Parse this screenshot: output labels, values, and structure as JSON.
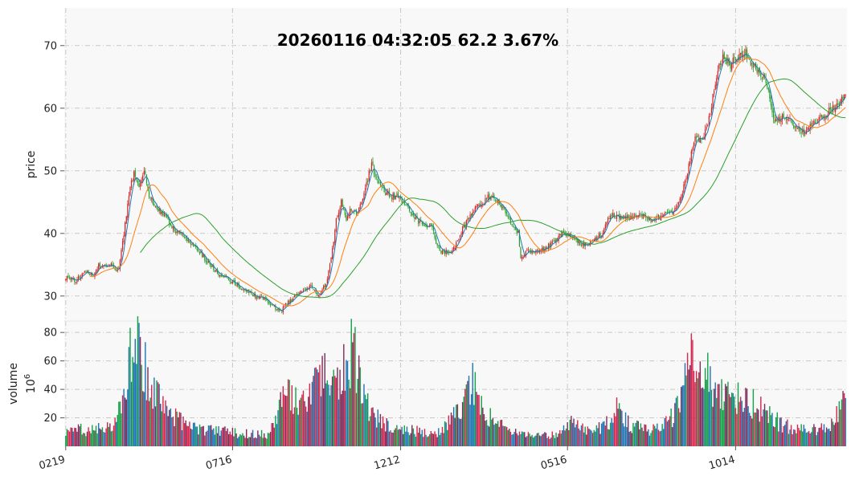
{
  "chart_data": {
    "type": "candlestick",
    "title": "20260116 04:32:05   62.2 3.67%",
    "colors": {
      "up": "#d62728",
      "down": "#2ca02c",
      "ma_short": "#1f77b4",
      "ma_mid": "#ff7f0e",
      "ma_long": "#2ca02c",
      "vol": [
        "#1f77b4",
        "#7f2d5a",
        "#d6274f",
        "#16a04a"
      ],
      "panel_bg": "#f8f8f8",
      "grid": "#c8c8c8"
    },
    "price_panel": {
      "ylabel": "price",
      "ylim": [
        26,
        76
      ],
      "yticks": [
        30,
        40,
        50,
        60,
        70
      ],
      "grid": true,
      "keypoints": [
        [
          0,
          33
        ],
        [
          8,
          32.5
        ],
        [
          16,
          34
        ],
        [
          22,
          33
        ],
        [
          26,
          35
        ],
        [
          32,
          34.5
        ],
        [
          36,
          35
        ],
        [
          42,
          34
        ],
        [
          46,
          40
        ],
        [
          50,
          46
        ],
        [
          54,
          50
        ],
        [
          58,
          47
        ],
        [
          62,
          50
        ],
        [
          66,
          46
        ],
        [
          72,
          44
        ],
        [
          78,
          43
        ],
        [
          84,
          41
        ],
        [
          90,
          40
        ],
        [
          96,
          39
        ],
        [
          102,
          38
        ],
        [
          110,
          36
        ],
        [
          118,
          34
        ],
        [
          126,
          33
        ],
        [
          134,
          32
        ],
        [
          142,
          31
        ],
        [
          150,
          30
        ],
        [
          158,
          29.5
        ],
        [
          166,
          28
        ],
        [
          170,
          27.5
        ],
        [
          176,
          29
        ],
        [
          182,
          30
        ],
        [
          188,
          31
        ],
        [
          194,
          31.5
        ],
        [
          200,
          30
        ],
        [
          206,
          32
        ],
        [
          210,
          36
        ],
        [
          214,
          42
        ],
        [
          218,
          45
        ],
        [
          222,
          42
        ],
        [
          226,
          44
        ],
        [
          230,
          43
        ],
        [
          234,
          45
        ],
        [
          238,
          48
        ],
        [
          242,
          51
        ],
        [
          246,
          49
        ],
        [
          250,
          47
        ],
        [
          256,
          46
        ],
        [
          262,
          46
        ],
        [
          268,
          45
        ],
        [
          272,
          44
        ],
        [
          278,
          42
        ],
        [
          284,
          41.5
        ],
        [
          290,
          41
        ],
        [
          294,
          38
        ],
        [
          298,
          37
        ],
        [
          306,
          37
        ],
        [
          312,
          40
        ],
        [
          318,
          42
        ],
        [
          324,
          44
        ],
        [
          330,
          45
        ],
        [
          336,
          46
        ],
        [
          342,
          45
        ],
        [
          346,
          44
        ],
        [
          352,
          42
        ],
        [
          358,
          40
        ],
        [
          360,
          36
        ],
        [
          364,
          37
        ],
        [
          370,
          37
        ],
        [
          376,
          37.5
        ],
        [
          382,
          38
        ],
        [
          388,
          39
        ],
        [
          394,
          40
        ],
        [
          400,
          39.5
        ],
        [
          406,
          38.5
        ],
        [
          412,
          38
        ],
        [
          418,
          39
        ],
        [
          424,
          40
        ],
        [
          428,
          42
        ],
        [
          432,
          43
        ],
        [
          438,
          42.5
        ],
        [
          446,
          42.5
        ],
        [
          454,
          43
        ],
        [
          460,
          42
        ],
        [
          466,
          42
        ],
        [
          472,
          43
        ],
        [
          478,
          43
        ],
        [
          484,
          44
        ],
        [
          490,
          48
        ],
        [
          494,
          52
        ],
        [
          498,
          55
        ],
        [
          504,
          55
        ],
        [
          508,
          57
        ],
        [
          512,
          62
        ],
        [
          516,
          66
        ],
        [
          520,
          68
        ],
        [
          526,
          67
        ],
        [
          532,
          68
        ],
        [
          538,
          69
        ],
        [
          542,
          67
        ],
        [
          548,
          66
        ],
        [
          552,
          65
        ],
        [
          556,
          63
        ],
        [
          560,
          58
        ],
        [
          566,
          58.5
        ],
        [
          572,
          58
        ],
        [
          578,
          57
        ],
        [
          584,
          56
        ],
        [
          588,
          57
        ],
        [
          594,
          58
        ],
        [
          600,
          59
        ],
        [
          606,
          60
        ],
        [
          612,
          60.5
        ],
        [
          617,
          62.2
        ]
      ]
    },
    "volume_panel": {
      "ylabel": "volume",
      "unit": "10",
      "unit_exp": "6",
      "ylim": [
        0,
        88
      ],
      "yticks": [
        20,
        40,
        60,
        80
      ],
      "grid": true,
      "keypoints": [
        [
          0,
          10
        ],
        [
          10,
          12
        ],
        [
          20,
          11
        ],
        [
          30,
          13
        ],
        [
          38,
          15
        ],
        [
          44,
          30
        ],
        [
          48,
          50
        ],
        [
          52,
          68
        ],
        [
          56,
          75
        ],
        [
          60,
          62
        ],
        [
          64,
          52
        ],
        [
          70,
          40
        ],
        [
          76,
          30
        ],
        [
          84,
          22
        ],
        [
          92,
          18
        ],
        [
          100,
          15
        ],
        [
          110,
          12
        ],
        [
          120,
          11
        ],
        [
          130,
          10
        ],
        [
          140,
          9
        ],
        [
          150,
          9
        ],
        [
          160,
          8
        ],
        [
          165,
          20
        ],
        [
          170,
          33
        ],
        [
          176,
          35
        ],
        [
          182,
          33
        ],
        [
          188,
          30
        ],
        [
          192,
          36
        ],
        [
          196,
          45
        ],
        [
          200,
          60
        ],
        [
          204,
          55
        ],
        [
          208,
          35
        ],
        [
          212,
          40
        ],
        [
          216,
          48
        ],
        [
          220,
          55
        ],
        [
          224,
          62
        ],
        [
          226,
          70
        ],
        [
          230,
          60
        ],
        [
          234,
          42
        ],
        [
          238,
          30
        ],
        [
          244,
          22
        ],
        [
          252,
          16
        ],
        [
          262,
          13
        ],
        [
          272,
          12
        ],
        [
          282,
          10
        ],
        [
          292,
          9
        ],
        [
          300,
          15
        ],
        [
          306,
          22
        ],
        [
          312,
          30
        ],
        [
          318,
          38
        ],
        [
          322,
          45
        ],
        [
          326,
          36
        ],
        [
          332,
          24
        ],
        [
          340,
          18
        ],
        [
          350,
          12
        ],
        [
          360,
          9
        ],
        [
          370,
          8
        ],
        [
          380,
          8
        ],
        [
          390,
          9
        ],
        [
          396,
          12
        ],
        [
          400,
          18
        ],
        [
          410,
          12
        ],
        [
          420,
          12
        ],
        [
          430,
          18
        ],
        [
          436,
          28
        ],
        [
          440,
          20
        ],
        [
          448,
          14
        ],
        [
          456,
          13
        ],
        [
          466,
          12
        ],
        [
          474,
          15
        ],
        [
          480,
          22
        ],
        [
          486,
          30
        ],
        [
          490,
          48
        ],
        [
          494,
          62
        ],
        [
          500,
          58
        ],
        [
          506,
          52
        ],
        [
          510,
          46
        ],
        [
          514,
          42
        ],
        [
          520,
          36
        ],
        [
          528,
          32
        ],
        [
          536,
          35
        ],
        [
          546,
          30
        ],
        [
          556,
          22
        ],
        [
          566,
          16
        ],
        [
          576,
          13
        ],
        [
          586,
          11
        ],
        [
          596,
          12
        ],
        [
          606,
          18
        ],
        [
          612,
          25
        ],
        [
          617,
          32
        ]
      ]
    },
    "x": {
      "n": 618,
      "tick_labels": [
        "0219",
        "0716",
        "1212",
        "0516",
        "1014"
      ],
      "tick_index": [
        0,
        132,
        265,
        397,
        530
      ]
    },
    "series": [
      {
        "type": "ma",
        "window": 5,
        "color": "ma_short"
      },
      {
        "type": "ma",
        "window": 20,
        "color": "ma_mid"
      },
      {
        "type": "ma",
        "window": 60,
        "color": "ma_long"
      }
    ]
  }
}
